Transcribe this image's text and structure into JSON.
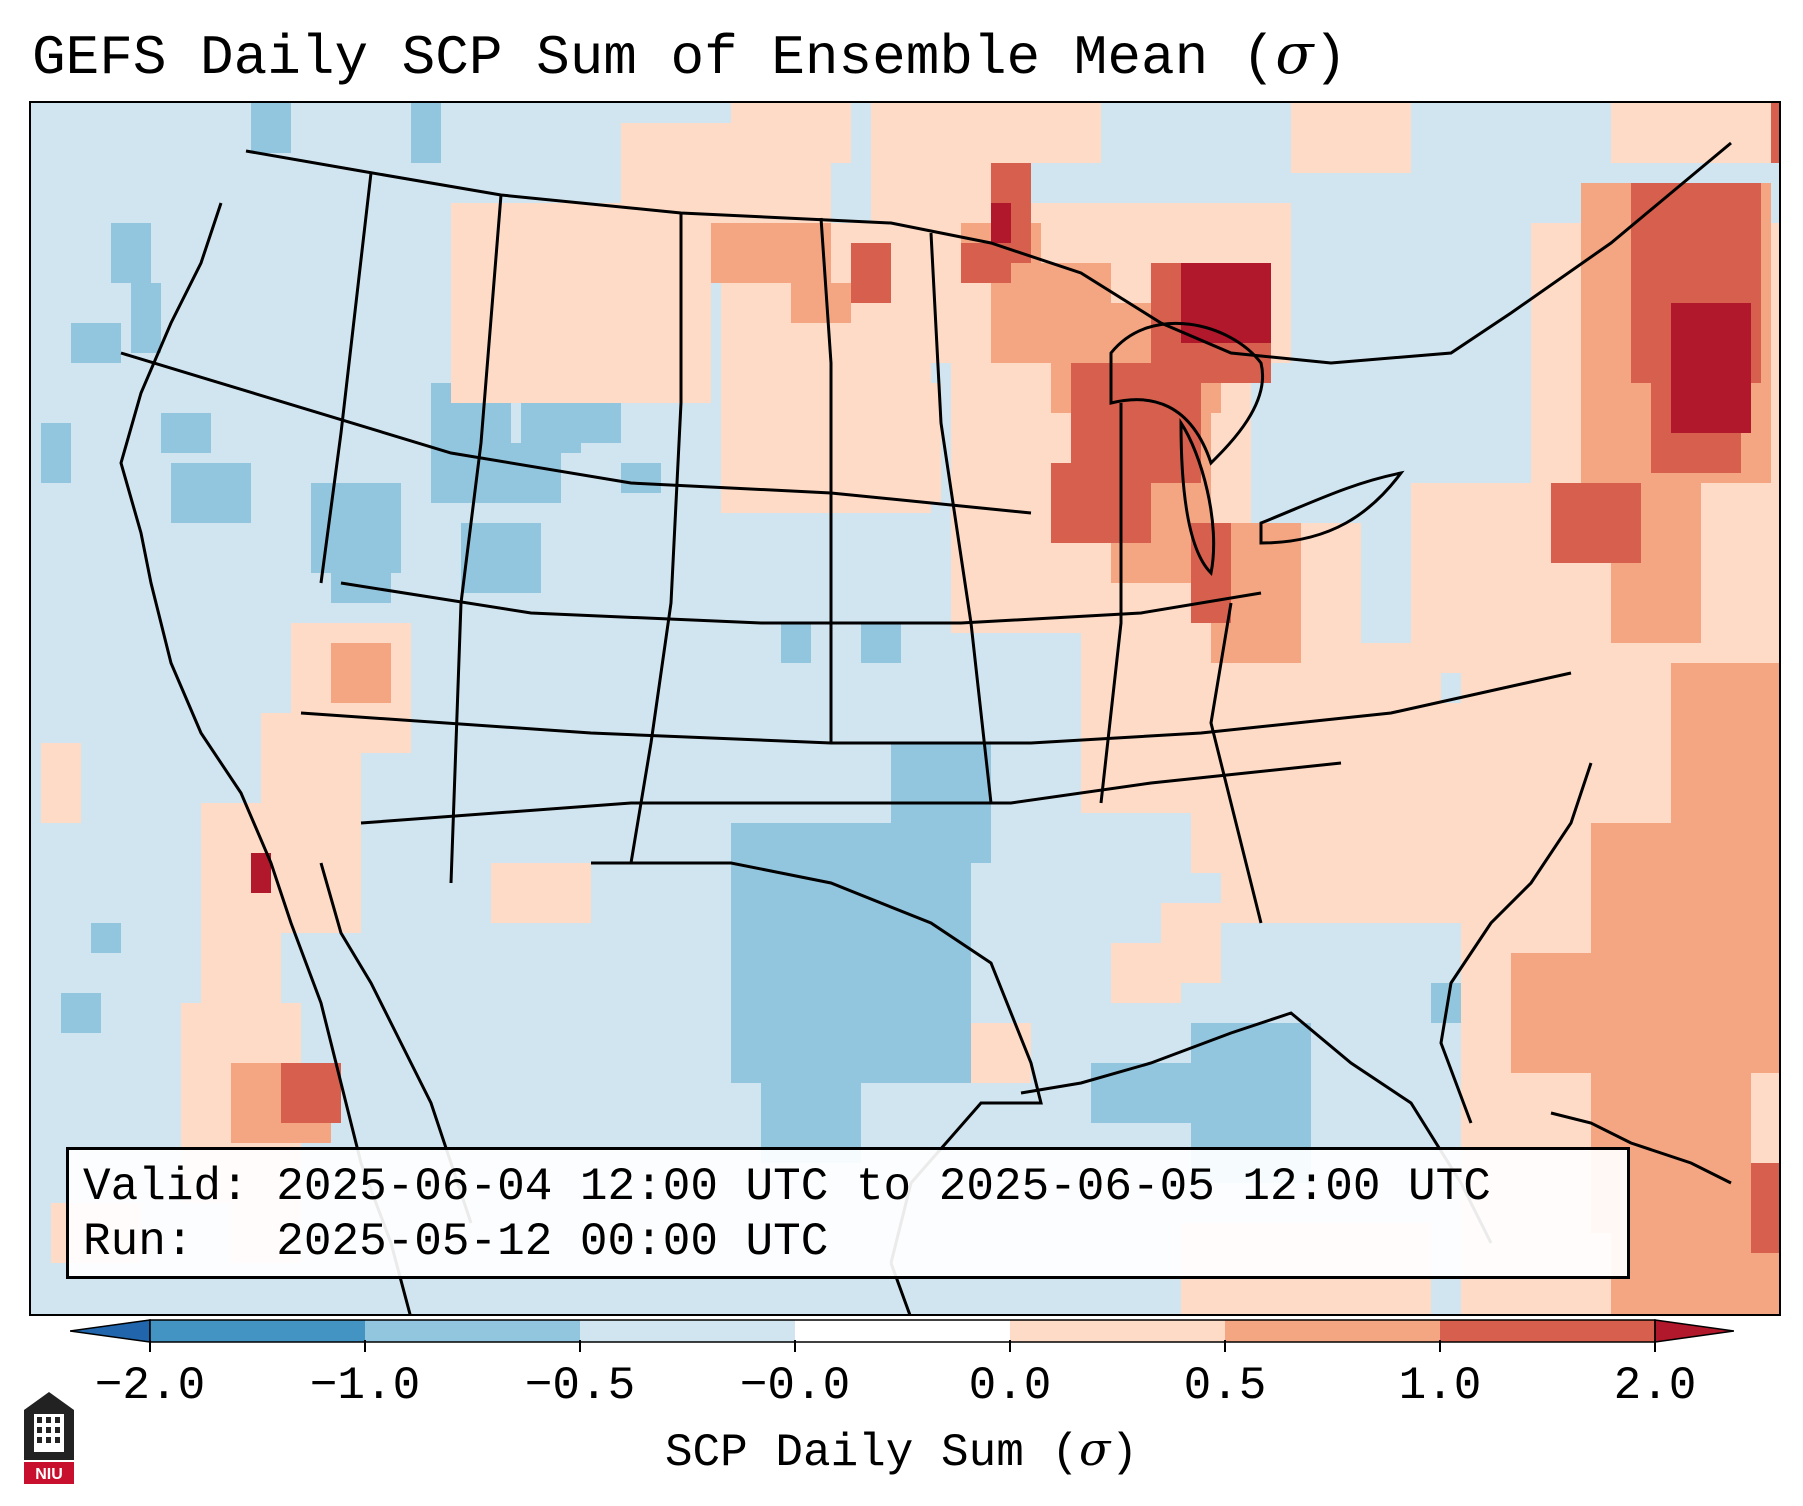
{
  "title": {
    "text": "GEFS Daily SCP Sum of Ensemble Mean (",
    "sigma": "σ",
    "close": ")"
  },
  "info": {
    "valid_label": "Valid:",
    "valid_value": "2025-06-04 12:00 UTC to 2025-06-05 12:00 UTC",
    "run_label": "Run:",
    "run_value": "2025-05-12 00:00 UTC"
  },
  "colorbar": {
    "ticks": [
      "−2.0",
      "−1.0",
      "−0.5",
      "−0.0",
      "0.0",
      "0.5",
      "1.0",
      "2.0"
    ],
    "label_text": "SCP Daily Sum (",
    "label_sigma": "σ",
    "label_close": ")",
    "colors": [
      "#2166ac",
      "#4393c3",
      "#92c5de",
      "#d1e5f0",
      "#fddbc7",
      "#f4a582",
      "#d6604d",
      "#b2182b"
    ],
    "extend": "both"
  },
  "logo": {
    "text": "NIU",
    "color": "#c8102e"
  },
  "map_colors": {
    "background": "#d1e5f0",
    "ocean_low": "#ffffff"
  }
}
